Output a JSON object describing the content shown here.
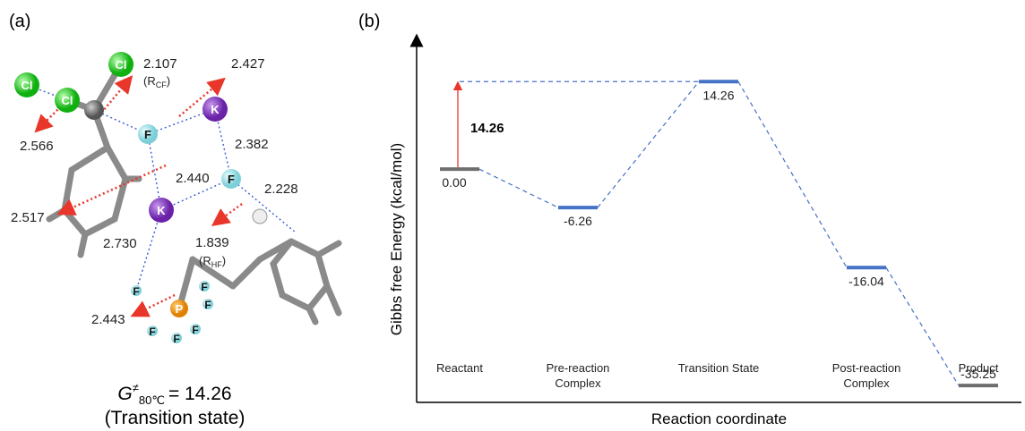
{
  "panel_a": {
    "label": "(a)",
    "distances": [
      "2.107",
      "2.427",
      "2.566",
      "2.382",
      "2.440",
      "2.228",
      "2.517",
      "2.730",
      "1.839",
      "2.443"
    ],
    "note_cf": [
      "(R",
      "CF",
      ")"
    ],
    "note_hf": [
      "(R",
      "HF",
      ")"
    ],
    "atoms": [
      "Cl",
      "Cl",
      "Cl",
      "F",
      "K",
      "F",
      "K",
      "P",
      "F",
      "F",
      "F",
      "F",
      "F",
      "F"
    ],
    "caption": [
      "G",
      "≠",
      "80℃",
      "= 14.26"
    ],
    "caption_sub": "(Transition state)"
  },
  "chart_data": {
    "type": "energy-level",
    "panel_label": "(b)",
    "y_label": "Gibbs free Energy (kcal/mol)",
    "x_label": "Reaction coordinate",
    "categories": [
      "Reactant",
      "Pre-reaction Complex",
      "Transition State",
      "Post-reaction Complex",
      "Product"
    ],
    "values": [
      0,
      -6.26,
      14.26,
      -16.04,
      -35.25
    ],
    "value_labels": [
      "0.00",
      "-6.26",
      "14.26",
      "-16.04",
      "-35.25"
    ],
    "colors": [
      "#6e6e6e",
      "#4472c4",
      "#4472c4",
      "#4472c4",
      "#6e6e6e"
    ],
    "connector_color": "#4472c4",
    "barrier_label": "14.26",
    "barrier_color": "#e8362a",
    "ylim": [
      -38,
      21
    ]
  }
}
